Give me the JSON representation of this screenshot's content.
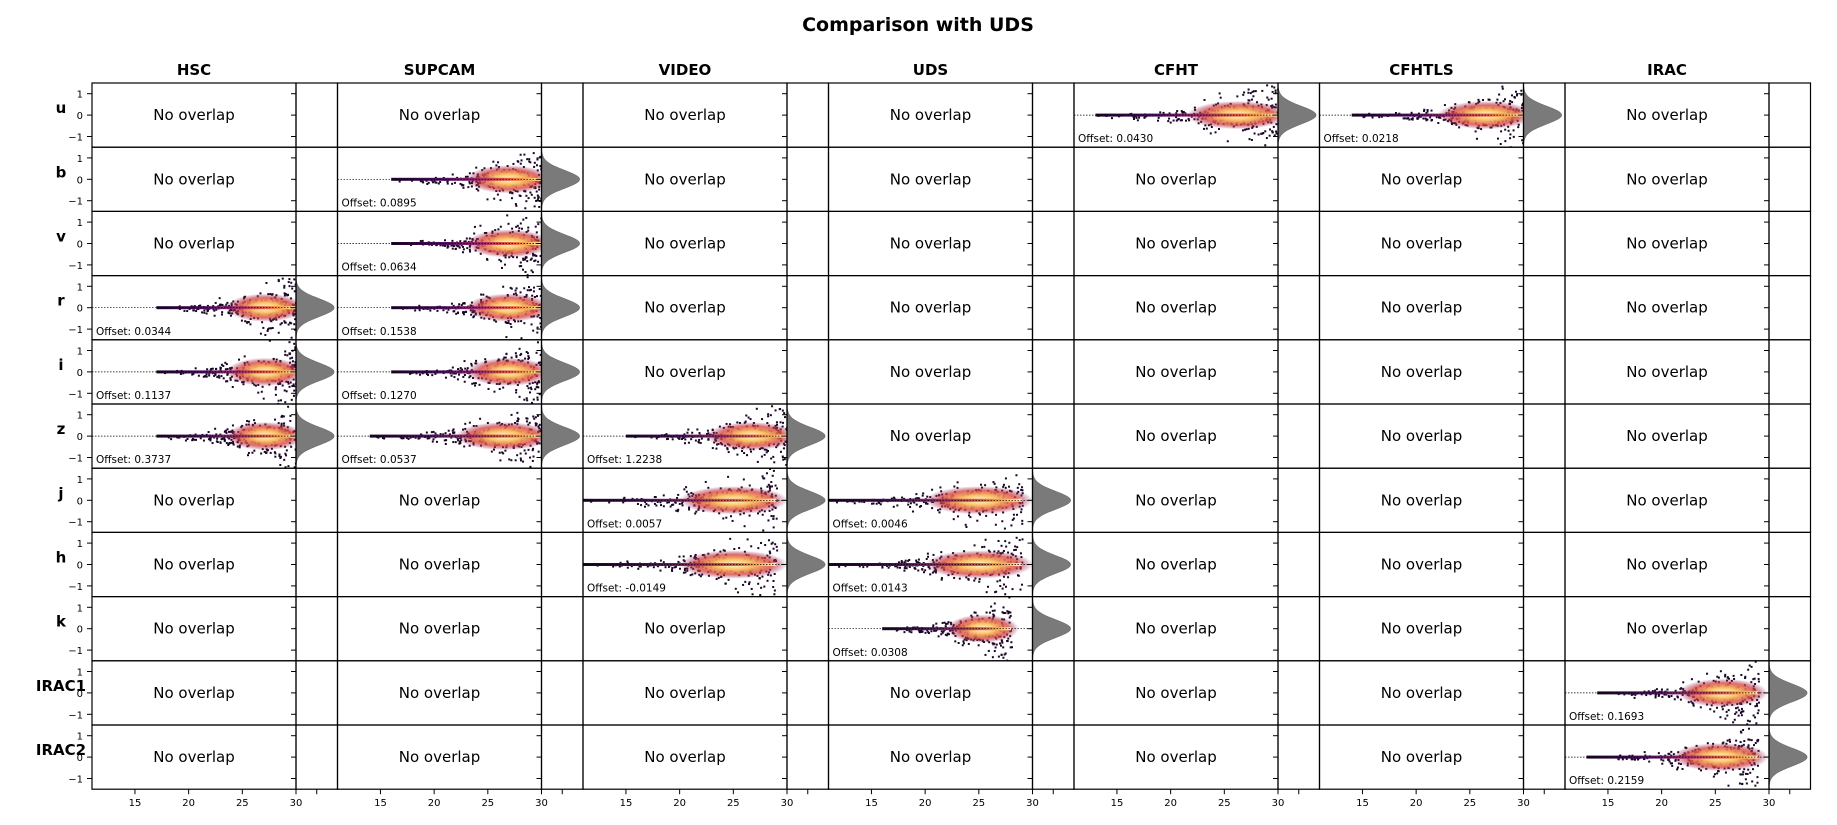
{
  "title": "Comparison with UDS",
  "columns": [
    "HSC",
    "SUPCAM",
    "VIDEO",
    "UDS",
    "CFHT",
    "CFHTLS",
    "IRAC"
  ],
  "rows": [
    "u",
    "b",
    "v",
    "r",
    "i",
    "z",
    "j",
    "h",
    "k",
    "IRAC1",
    "IRAC2"
  ],
  "no_overlap_text": "No overlap",
  "offset_prefix": "Offset: ",
  "x_ticks": [
    "15",
    "20",
    "25",
    "30"
  ],
  "y_ticks": [
    "1",
    "0",
    "−1"
  ],
  "colors": {
    "density_low": "#2b0a3d",
    "density_mid": "#c23a6b",
    "density_high": "#fcd27a",
    "histogram": "#7a7a7a",
    "frame": "#000000"
  },
  "chart_data": {
    "type": "heatmap",
    "title": "Comparison with UDS",
    "xlim": [
      11,
      30
    ],
    "ylim": [
      -1.5,
      1.5
    ],
    "x_ticks": [
      15,
      20,
      25,
      30
    ],
    "y_ticks": [
      1,
      0,
      -1
    ],
    "panels": [
      {
        "row": "u",
        "column": "CFHT",
        "offset": "0.0430",
        "x_range": [
          13,
          30
        ]
      },
      {
        "row": "u",
        "column": "CFHTLS",
        "offset": "0.0218",
        "x_range": [
          14,
          30
        ]
      },
      {
        "row": "b",
        "column": "SUPCAM",
        "offset": "0.0895",
        "x_range": [
          16,
          30
        ]
      },
      {
        "row": "v",
        "column": "SUPCAM",
        "offset": "0.0634",
        "x_range": [
          16,
          30
        ]
      },
      {
        "row": "r",
        "column": "HSC",
        "offset": "0.0344",
        "x_range": [
          17,
          30
        ]
      },
      {
        "row": "r",
        "column": "SUPCAM",
        "offset": "0.1538",
        "x_range": [
          16,
          30
        ]
      },
      {
        "row": "i",
        "column": "HSC",
        "offset": "0.1137",
        "x_range": [
          17,
          30
        ]
      },
      {
        "row": "i",
        "column": "SUPCAM",
        "offset": "0.1270",
        "x_range": [
          16,
          30
        ]
      },
      {
        "row": "z",
        "column": "HSC",
        "offset": "0.3737",
        "x_range": [
          17,
          30
        ]
      },
      {
        "row": "z",
        "column": "SUPCAM",
        "offset": "0.0537",
        "x_range": [
          14,
          30
        ]
      },
      {
        "row": "z",
        "column": "VIDEO",
        "offset": "1.2238",
        "x_range": [
          15,
          30
        ]
      },
      {
        "row": "j",
        "column": "VIDEO",
        "offset": "0.0057",
        "x_range": [
          11,
          29
        ]
      },
      {
        "row": "j",
        "column": "UDS",
        "offset": "0.0046",
        "x_range": [
          11,
          29
        ]
      },
      {
        "row": "h",
        "column": "VIDEO",
        "offset": "-0.0149",
        "x_range": [
          11,
          29
        ]
      },
      {
        "row": "h",
        "column": "UDS",
        "offset": "0.0143",
        "x_range": [
          11,
          29
        ]
      },
      {
        "row": "k",
        "column": "UDS",
        "offset": "0.0308",
        "x_range": [
          16,
          28
        ]
      },
      {
        "row": "IRAC1",
        "column": "IRAC",
        "offset": "0.1693",
        "x_range": [
          14,
          29
        ]
      },
      {
        "row": "IRAC2",
        "column": "IRAC",
        "offset": "0.2159",
        "x_range": [
          13,
          29
        ]
      }
    ]
  }
}
